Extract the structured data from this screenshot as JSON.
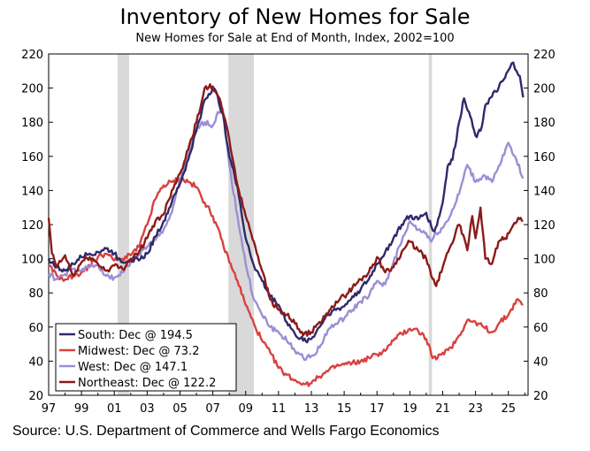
{
  "chart_data": {
    "type": "line",
    "title": "Inventory of New Homes for Sale",
    "subtitle": "New Homes for Sale at End of Month, Index, 2002=100",
    "source": "Source: U.S. Department of Commerce and Wells Fargo Economics",
    "ylim": [
      20,
      220
    ],
    "yticks": [
      20,
      40,
      60,
      80,
      100,
      120,
      140,
      160,
      180,
      200,
      220
    ],
    "xlim": [
      1997.0,
      2026.2
    ],
    "xticks": [
      1997,
      1999,
      2001,
      2003,
      2005,
      2007,
      2009,
      2011,
      2013,
      2015,
      2017,
      2019,
      2021,
      2023,
      2025
    ],
    "xtick_labels": [
      "97",
      "99",
      "01",
      "03",
      "05",
      "07",
      "09",
      "11",
      "13",
      "15",
      "17",
      "19",
      "21",
      "23",
      "25"
    ],
    "recessions": [
      [
        2001.2,
        2001.9
      ],
      [
        2007.95,
        2009.5
      ],
      [
        2020.15,
        2020.35
      ]
    ],
    "legend_position": "bottom-left",
    "series": [
      {
        "name": "South",
        "legend": "South: Dec @ 194.5",
        "color": "#2e2a6b",
        "points": [
          [
            1997.0,
            100
          ],
          [
            1997.5,
            95
          ],
          [
            1998.0,
            93
          ],
          [
            1998.5,
            97
          ],
          [
            1999.0,
            101
          ],
          [
            1999.5,
            103
          ],
          [
            2000.0,
            104
          ],
          [
            2000.5,
            106
          ],
          [
            2001.0,
            103
          ],
          [
            2001.5,
            98
          ],
          [
            2002.0,
            100
          ],
          [
            2002.5,
            99
          ],
          [
            2003.0,
            103
          ],
          [
            2003.5,
            113
          ],
          [
            2004.0,
            122
          ],
          [
            2004.5,
            133
          ],
          [
            2005.0,
            144
          ],
          [
            2005.5,
            158
          ],
          [
            2006.0,
            175
          ],
          [
            2006.5,
            193
          ],
          [
            2007.0,
            200
          ],
          [
            2007.3,
            195
          ],
          [
            2007.7,
            180
          ],
          [
            2008.0,
            160
          ],
          [
            2008.5,
            142
          ],
          [
            2009.0,
            112
          ],
          [
            2009.5,
            96
          ],
          [
            2010.0,
            87
          ],
          [
            2010.5,
            78
          ],
          [
            2011.0,
            73
          ],
          [
            2011.5,
            63
          ],
          [
            2012.0,
            56
          ],
          [
            2012.5,
            52
          ],
          [
            2013.0,
            53
          ],
          [
            2013.5,
            60
          ],
          [
            2014.0,
            68
          ],
          [
            2014.5,
            70
          ],
          [
            2015.0,
            72
          ],
          [
            2015.5,
            78
          ],
          [
            2016.0,
            82
          ],
          [
            2016.5,
            88
          ],
          [
            2017.0,
            97
          ],
          [
            2017.5,
            104
          ],
          [
            2018.0,
            112
          ],
          [
            2018.5,
            120
          ],
          [
            2019.0,
            125
          ],
          [
            2019.5,
            123
          ],
          [
            2020.0,
            127
          ],
          [
            2020.3,
            119
          ],
          [
            2020.5,
            116
          ],
          [
            2020.8,
            125
          ],
          [
            2021.0,
            133
          ],
          [
            2021.3,
            154
          ],
          [
            2021.6,
            158
          ],
          [
            2022.0,
            180
          ],
          [
            2022.3,
            194
          ],
          [
            2022.6,
            186
          ],
          [
            2023.0,
            172
          ],
          [
            2023.3,
            175
          ],
          [
            2023.6,
            190
          ],
          [
            2024.0,
            195
          ],
          [
            2024.4,
            200
          ],
          [
            2024.8,
            206
          ],
          [
            2025.1,
            212
          ],
          [
            2025.3,
            215
          ],
          [
            2025.5,
            210
          ],
          [
            2025.7,
            207
          ],
          [
            2025.9,
            194.5
          ]
        ]
      },
      {
        "name": "Midwest",
        "legend": "Midwest: Dec @ 73.2",
        "color": "#d9413f",
        "points": [
          [
            1997.0,
            96
          ],
          [
            1997.5,
            90
          ],
          [
            1998.0,
            88
          ],
          [
            1998.5,
            90
          ],
          [
            1999.0,
            92
          ],
          [
            1999.5,
            96
          ],
          [
            2000.0,
            101
          ],
          [
            2000.5,
            103
          ],
          [
            2001.0,
            99
          ],
          [
            2001.5,
            100
          ],
          [
            2002.0,
            102
          ],
          [
            2002.5,
            107
          ],
          [
            2003.0,
            120
          ],
          [
            2003.5,
            135
          ],
          [
            2004.0,
            143
          ],
          [
            2004.5,
            145
          ],
          [
            2005.0,
            147
          ],
          [
            2005.5,
            145
          ],
          [
            2006.0,
            142
          ],
          [
            2006.5,
            133
          ],
          [
            2007.0,
            125
          ],
          [
            2007.5,
            112
          ],
          [
            2008.0,
            98
          ],
          [
            2008.5,
            87
          ],
          [
            2009.0,
            73
          ],
          [
            2009.5,
            62
          ],
          [
            2010.0,
            52
          ],
          [
            2010.5,
            45
          ],
          [
            2011.0,
            36
          ],
          [
            2011.5,
            32
          ],
          [
            2012.0,
            29
          ],
          [
            2012.5,
            27
          ],
          [
            2013.0,
            27
          ],
          [
            2013.5,
            31
          ],
          [
            2014.0,
            34
          ],
          [
            2014.5,
            37
          ],
          [
            2015.0,
            38
          ],
          [
            2015.5,
            39
          ],
          [
            2016.0,
            40
          ],
          [
            2016.5,
            42
          ],
          [
            2017.0,
            44
          ],
          [
            2017.5,
            46
          ],
          [
            2018.0,
            52
          ],
          [
            2018.5,
            56
          ],
          [
            2019.0,
            59
          ],
          [
            2019.5,
            58
          ],
          [
            2020.0,
            53
          ],
          [
            2020.3,
            44
          ],
          [
            2020.6,
            41
          ],
          [
            2021.0,
            45
          ],
          [
            2021.5,
            48
          ],
          [
            2022.0,
            55
          ],
          [
            2022.5,
            64
          ],
          [
            2023.0,
            63
          ],
          [
            2023.5,
            60
          ],
          [
            2024.0,
            57
          ],
          [
            2024.5,
            63
          ],
          [
            2025.0,
            67
          ],
          [
            2025.5,
            76
          ],
          [
            2025.9,
            73.2
          ]
        ]
      },
      {
        "name": "West",
        "legend": "West: Dec @ 147.1",
        "color": "#9b8fd4",
        "points": [
          [
            1997.0,
            91
          ],
          [
            1997.5,
            88
          ],
          [
            1998.0,
            91
          ],
          [
            1998.5,
            94
          ],
          [
            1999.0,
            93
          ],
          [
            1999.5,
            95
          ],
          [
            2000.0,
            97
          ],
          [
            2000.5,
            90
          ],
          [
            2001.0,
            89
          ],
          [
            2001.5,
            92
          ],
          [
            2002.0,
            98
          ],
          [
            2002.5,
            103
          ],
          [
            2003.0,
            107
          ],
          [
            2003.5,
            111
          ],
          [
            2004.0,
            117
          ],
          [
            2004.5,
            127
          ],
          [
            2005.0,
            146
          ],
          [
            2005.5,
            160
          ],
          [
            2006.0,
            176
          ],
          [
            2006.5,
            180
          ],
          [
            2007.0,
            178
          ],
          [
            2007.3,
            186
          ],
          [
            2007.6,
            188
          ],
          [
            2008.0,
            155
          ],
          [
            2008.5,
            125
          ],
          [
            2009.0,
            97
          ],
          [
            2009.5,
            76
          ],
          [
            2010.0,
            67
          ],
          [
            2010.5,
            60
          ],
          [
            2011.0,
            57
          ],
          [
            2011.5,
            52
          ],
          [
            2012.0,
            46
          ],
          [
            2012.5,
            42
          ],
          [
            2013.0,
            43
          ],
          [
            2013.5,
            48
          ],
          [
            2014.0,
            58
          ],
          [
            2014.5,
            62
          ],
          [
            2015.0,
            65
          ],
          [
            2015.5,
            70
          ],
          [
            2016.0,
            75
          ],
          [
            2016.5,
            78
          ],
          [
            2017.0,
            87
          ],
          [
            2017.5,
            85
          ],
          [
            2018.0,
            98
          ],
          [
            2018.5,
            110
          ],
          [
            2019.0,
            122
          ],
          [
            2019.5,
            117
          ],
          [
            2020.0,
            115
          ],
          [
            2020.3,
            110
          ],
          [
            2020.6,
            115
          ],
          [
            2021.0,
            118
          ],
          [
            2021.5,
            126
          ],
          [
            2022.0,
            138
          ],
          [
            2022.5,
            155
          ],
          [
            2023.0,
            145
          ],
          [
            2023.5,
            149
          ],
          [
            2024.0,
            145
          ],
          [
            2024.5,
            155
          ],
          [
            2025.0,
            168
          ],
          [
            2025.4,
            160
          ],
          [
            2025.9,
            147.1
          ]
        ]
      },
      {
        "name": "Northeast",
        "legend": "Northeast: Dec @ 122.2",
        "color": "#8b1a1a",
        "points": [
          [
            1997.0,
            124
          ],
          [
            1997.2,
            103
          ],
          [
            1997.5,
            95
          ],
          [
            1998.0,
            102
          ],
          [
            1998.5,
            90
          ],
          [
            1999.0,
            98
          ],
          [
            1999.5,
            101
          ],
          [
            2000.0,
            97
          ],
          [
            2000.5,
            93
          ],
          [
            2001.0,
            96
          ],
          [
            2001.5,
            94
          ],
          [
            2002.0,
            100
          ],
          [
            2002.5,
            104
          ],
          [
            2003.0,
            112
          ],
          [
            2003.5,
            122
          ],
          [
            2004.0,
            126
          ],
          [
            2004.5,
            140
          ],
          [
            2005.0,
            150
          ],
          [
            2005.5,
            164
          ],
          [
            2006.0,
            180
          ],
          [
            2006.5,
            200
          ],
          [
            2007.0,
            201
          ],
          [
            2007.5,
            191
          ],
          [
            2008.0,
            170
          ],
          [
            2008.5,
            143
          ],
          [
            2009.0,
            125
          ],
          [
            2009.5,
            110
          ],
          [
            2010.0,
            93
          ],
          [
            2010.5,
            76
          ],
          [
            2011.0,
            70
          ],
          [
            2011.5,
            67
          ],
          [
            2012.0,
            62
          ],
          [
            2012.5,
            55
          ],
          [
            2013.0,
            57
          ],
          [
            2013.5,
            63
          ],
          [
            2014.0,
            67
          ],
          [
            2014.5,
            75
          ],
          [
            2015.0,
            78
          ],
          [
            2015.5,
            83
          ],
          [
            2016.0,
            88
          ],
          [
            2016.5,
            92
          ],
          [
            2017.0,
            101
          ],
          [
            2017.5,
            92
          ],
          [
            2018.0,
            95
          ],
          [
            2018.5,
            104
          ],
          [
            2019.0,
            110
          ],
          [
            2019.5,
            105
          ],
          [
            2020.0,
            100
          ],
          [
            2020.3,
            90
          ],
          [
            2020.6,
            84
          ],
          [
            2021.0,
            95
          ],
          [
            2021.5,
            108
          ],
          [
            2022.0,
            120
          ],
          [
            2022.5,
            105
          ],
          [
            2022.8,
            125
          ],
          [
            2023.0,
            112
          ],
          [
            2023.3,
            130
          ],
          [
            2023.6,
            100
          ],
          [
            2024.0,
            97
          ],
          [
            2024.4,
            110
          ],
          [
            2024.8,
            112
          ],
          [
            2025.2,
            118
          ],
          [
            2025.6,
            124
          ],
          [
            2025.9,
            122.2
          ]
        ]
      }
    ]
  }
}
